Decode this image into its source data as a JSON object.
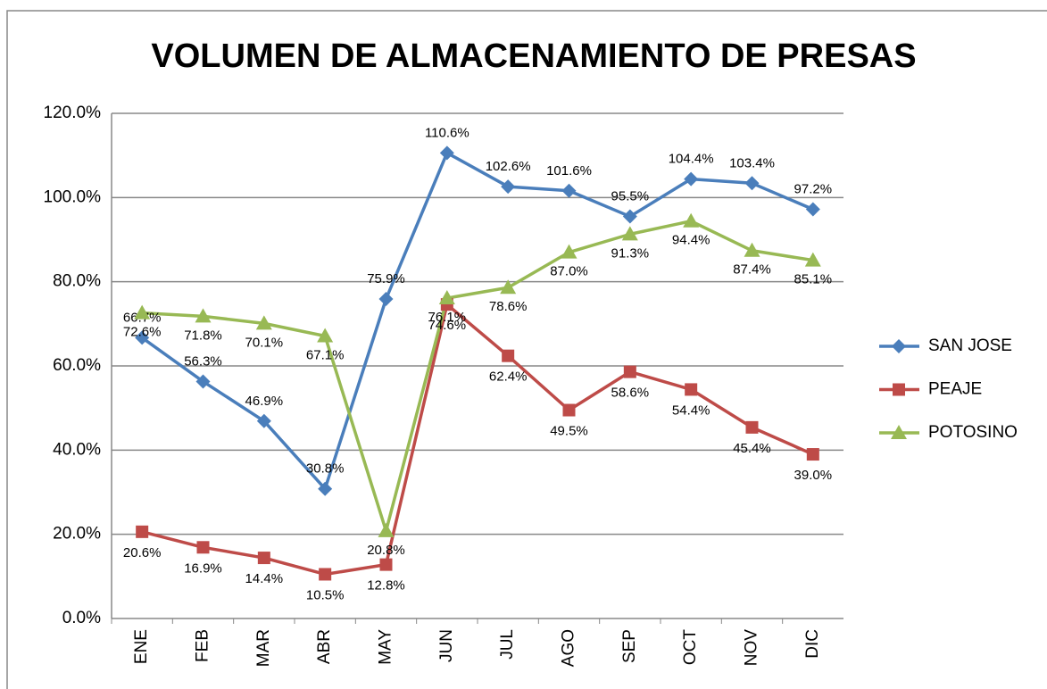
{
  "chart_data": {
    "type": "line",
    "title": "VOLUMEN DE ALMACENAMIENTO DE PRESAS",
    "categories": [
      "ENE",
      "FEB",
      "MAR",
      "ABR",
      "MAY",
      "JUN",
      "JUL",
      "AGO",
      "SEP",
      "OCT",
      "NOV",
      "DIC"
    ],
    "series": [
      {
        "name": "SAN JOSE",
        "color": "#4a7ebb",
        "marker": "diamond",
        "values": [
          66.7,
          56.3,
          46.9,
          30.8,
          75.9,
          110.6,
          102.6,
          101.6,
          95.5,
          104.4,
          103.4,
          97.2
        ],
        "value_labels": [
          "66.7%",
          "56.3%",
          "46.9%",
          "30.8%",
          "75.9%",
          "110.6%",
          "102.6%",
          "101.6%",
          "95.5%",
          "104.4%",
          "103.4%",
          "97.2%"
        ]
      },
      {
        "name": "PEAJE",
        "color": "#be4b48",
        "marker": "square",
        "values": [
          20.6,
          16.9,
          14.4,
          10.5,
          12.8,
          74.6,
          62.4,
          49.5,
          58.6,
          54.4,
          45.4,
          39.0
        ],
        "value_labels": [
          "20.6%",
          "16.9%",
          "14.4%",
          "10.5%",
          "12.8%",
          "74.6%",
          "62.4%",
          "49.5%",
          "58.6%",
          "54.4%",
          "45.4%",
          "39.0%"
        ]
      },
      {
        "name": "POTOSINO",
        "color": "#98b954",
        "marker": "triangle",
        "values": [
          72.6,
          71.8,
          70.1,
          67.1,
          20.8,
          76.1,
          78.6,
          87.0,
          91.3,
          94.4,
          87.4,
          85.1
        ],
        "value_labels": [
          "72.6%",
          "71.8%",
          "70.1%",
          "67.1%",
          "20.8%",
          "76.1%",
          "78.6%",
          "87.0%",
          "91.3%",
          "94.4%",
          "87.4%",
          "85.1%"
        ]
      }
    ],
    "ylim": [
      0,
      120
    ],
    "yticks": [
      {
        "value": 0,
        "label": "0.0%"
      },
      {
        "value": 20,
        "label": "20.0%"
      },
      {
        "value": 40,
        "label": "40.0%"
      },
      {
        "value": 60,
        "label": "60.0%"
      },
      {
        "value": 80,
        "label": "80.0%"
      },
      {
        "value": 100,
        "label": "100.0%"
      },
      {
        "value": 120,
        "label": "120.0%"
      }
    ],
    "grid": true,
    "legend": "right"
  }
}
